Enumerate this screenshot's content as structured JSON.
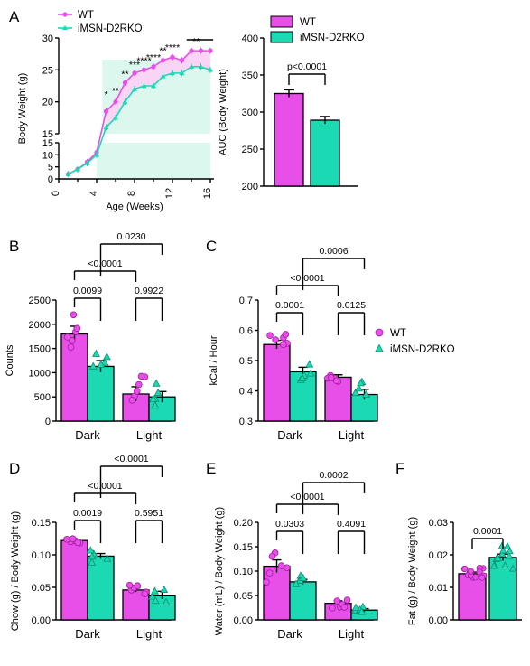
{
  "colors": {
    "wt": "#e84ee8",
    "ko": "#1ad9b3",
    "wt_fill": "#f9d4f5",
    "ko_fill": "#dcf7ee"
  },
  "legend": {
    "wt": "WT",
    "ko": "iMSN-D2RKO"
  },
  "chart_data": [
    {
      "panel": "A",
      "type": "line",
      "xlabel": "Age (Weeks)",
      "ylabel": "Body Weight (g)",
      "x_ticks": [
        0,
        4,
        8,
        12,
        16
      ],
      "y_ticks_lower": [
        0,
        5,
        10,
        15
      ],
      "y_ticks_upper": [
        15,
        20,
        25,
        30
      ],
      "x": [
        1,
        2,
        3,
        4,
        5,
        6,
        7,
        8,
        9,
        10,
        11,
        12,
        13,
        14,
        15,
        16
      ],
      "series": [
        {
          "name": "WT",
          "values": [
            2,
            4,
            7,
            11,
            18.5,
            20,
            23,
            24.5,
            25,
            25.5,
            26.5,
            27,
            26.5,
            28,
            28,
            28
          ]
        },
        {
          "name": "iMSN-D2RKO",
          "values": [
            2,
            4,
            6.5,
            10,
            16,
            17.5,
            20,
            22,
            22.5,
            22.5,
            24,
            24.5,
            24.5,
            25.5,
            25.5,
            25
          ]
        }
      ],
      "sig_labels": [
        "*",
        "**",
        "**",
        "***",
        "****",
        "****",
        "**",
        "****",
        "**"
      ]
    },
    {
      "panel": "A2",
      "type": "bar",
      "ylabel": "AUC (Body Weight)",
      "ylim": [
        200,
        400
      ],
      "y_ticks": [
        200,
        250,
        300,
        350,
        400
      ],
      "categories": [
        "WT",
        "iMSN-D2RKO"
      ],
      "values": [
        325,
        289
      ],
      "errors": [
        5,
        5
      ],
      "p_label": "p<0.0001"
    },
    {
      "panel": "B",
      "type": "bar",
      "ylabel": "Counts",
      "ylim": [
        0,
        2500
      ],
      "y_ticks": [
        0,
        500,
        1000,
        1500,
        2000,
        2500
      ],
      "categories": [
        "Dark",
        "Light"
      ],
      "series": [
        {
          "name": "WT",
          "values": [
            1800,
            560
          ],
          "errors": [
            160,
            150
          ]
        },
        {
          "name": "iMSN-D2RKO",
          "values": [
            1130,
            500
          ],
          "errors": [
            120,
            110
          ]
        }
      ],
      "p_values": [
        "0.0099",
        "0.9922",
        "<0.0001",
        "0.0230"
      ]
    },
    {
      "panel": "C",
      "type": "bar",
      "ylabel": "kCal / Hour",
      "ylim": [
        0.3,
        0.7
      ],
      "y_ticks": [
        0.3,
        0.4,
        0.5,
        0.6,
        0.7
      ],
      "categories": [
        "Dark",
        "Light"
      ],
      "series": [
        {
          "name": "WT",
          "values": [
            0.553,
            0.445
          ],
          "errors": [
            0.014,
            0.008
          ]
        },
        {
          "name": "iMSN-D2RKO",
          "values": [
            0.463,
            0.388
          ],
          "errors": [
            0.015,
            0.017
          ]
        }
      ],
      "p_values": [
        "0.0001",
        "0.0125",
        "<0.0001",
        "0.0006"
      ]
    },
    {
      "panel": "D",
      "type": "bar",
      "ylabel": "Chow (g) / Body Weight (g)",
      "ylim": [
        0,
        0.15
      ],
      "y_ticks": [
        0.0,
        0.05,
        0.1,
        0.15
      ],
      "categories": [
        "Dark",
        "Light"
      ],
      "series": [
        {
          "name": "WT",
          "values": [
            0.122,
            0.046
          ],
          "errors": [
            0.002,
            0.003
          ]
        },
        {
          "name": "iMSN-D2RKO",
          "values": [
            0.098,
            0.038
          ],
          "errors": [
            0.004,
            0.006
          ]
        }
      ],
      "p_values": [
        "0.0019",
        "0.5951",
        "<0.0001",
        "<0.0001"
      ]
    },
    {
      "panel": "E",
      "type": "bar",
      "ylabel": "Water (mL) / Body Weight (g)",
      "ylim": [
        0,
        0.2
      ],
      "y_ticks": [
        0.0,
        0.05,
        0.1,
        0.15,
        0.2
      ],
      "categories": [
        "Dark",
        "Light"
      ],
      "series": [
        {
          "name": "WT",
          "values": [
            0.11,
            0.034
          ],
          "errors": [
            0.013,
            0.005
          ]
        },
        {
          "name": "iMSN-D2RKO",
          "values": [
            0.078,
            0.02
          ],
          "errors": [
            0.005,
            0.003
          ]
        }
      ],
      "p_values": [
        "0.0303",
        "0.4091",
        "<0.0001",
        "0.0002"
      ]
    },
    {
      "panel": "F",
      "type": "bar",
      "ylabel": "Fat (g) / Body Weight (g)",
      "ylim": [
        0,
        0.03
      ],
      "y_ticks": [
        0.0,
        0.01,
        0.02,
        0.03
      ],
      "categories": [
        "WT",
        "iMSN-D2RKO"
      ],
      "values": [
        0.0142,
        0.0192
      ],
      "errors": [
        0.0005,
        0.001
      ],
      "p_label": "0.0001"
    }
  ],
  "tick_labels": {
    "A_x": [
      "0",
      "4",
      "8",
      "12",
      "16"
    ],
    "A_y_lower": [
      "0",
      "5",
      "10",
      "15"
    ],
    "A_y_upper": [
      "15",
      "20",
      "25",
      "30"
    ],
    "A2_y": [
      "200",
      "250",
      "300",
      "350",
      "400"
    ],
    "B_y": [
      "0",
      "500",
      "1000",
      "1500",
      "2000",
      "2500"
    ],
    "C_y": [
      "0.3",
      "0.4",
      "0.5",
      "0.6",
      "0.7"
    ],
    "D_y": [
      "0.00",
      "0.05",
      "0.10",
      "0.15"
    ],
    "E_y": [
      "0.00",
      "0.05",
      "0.10",
      "0.15",
      "0.20"
    ],
    "F_y": [
      "0.00",
      "0.01",
      "0.02",
      "0.03"
    ]
  },
  "panel_letters": [
    "A",
    "B",
    "C",
    "D",
    "E",
    "F"
  ]
}
